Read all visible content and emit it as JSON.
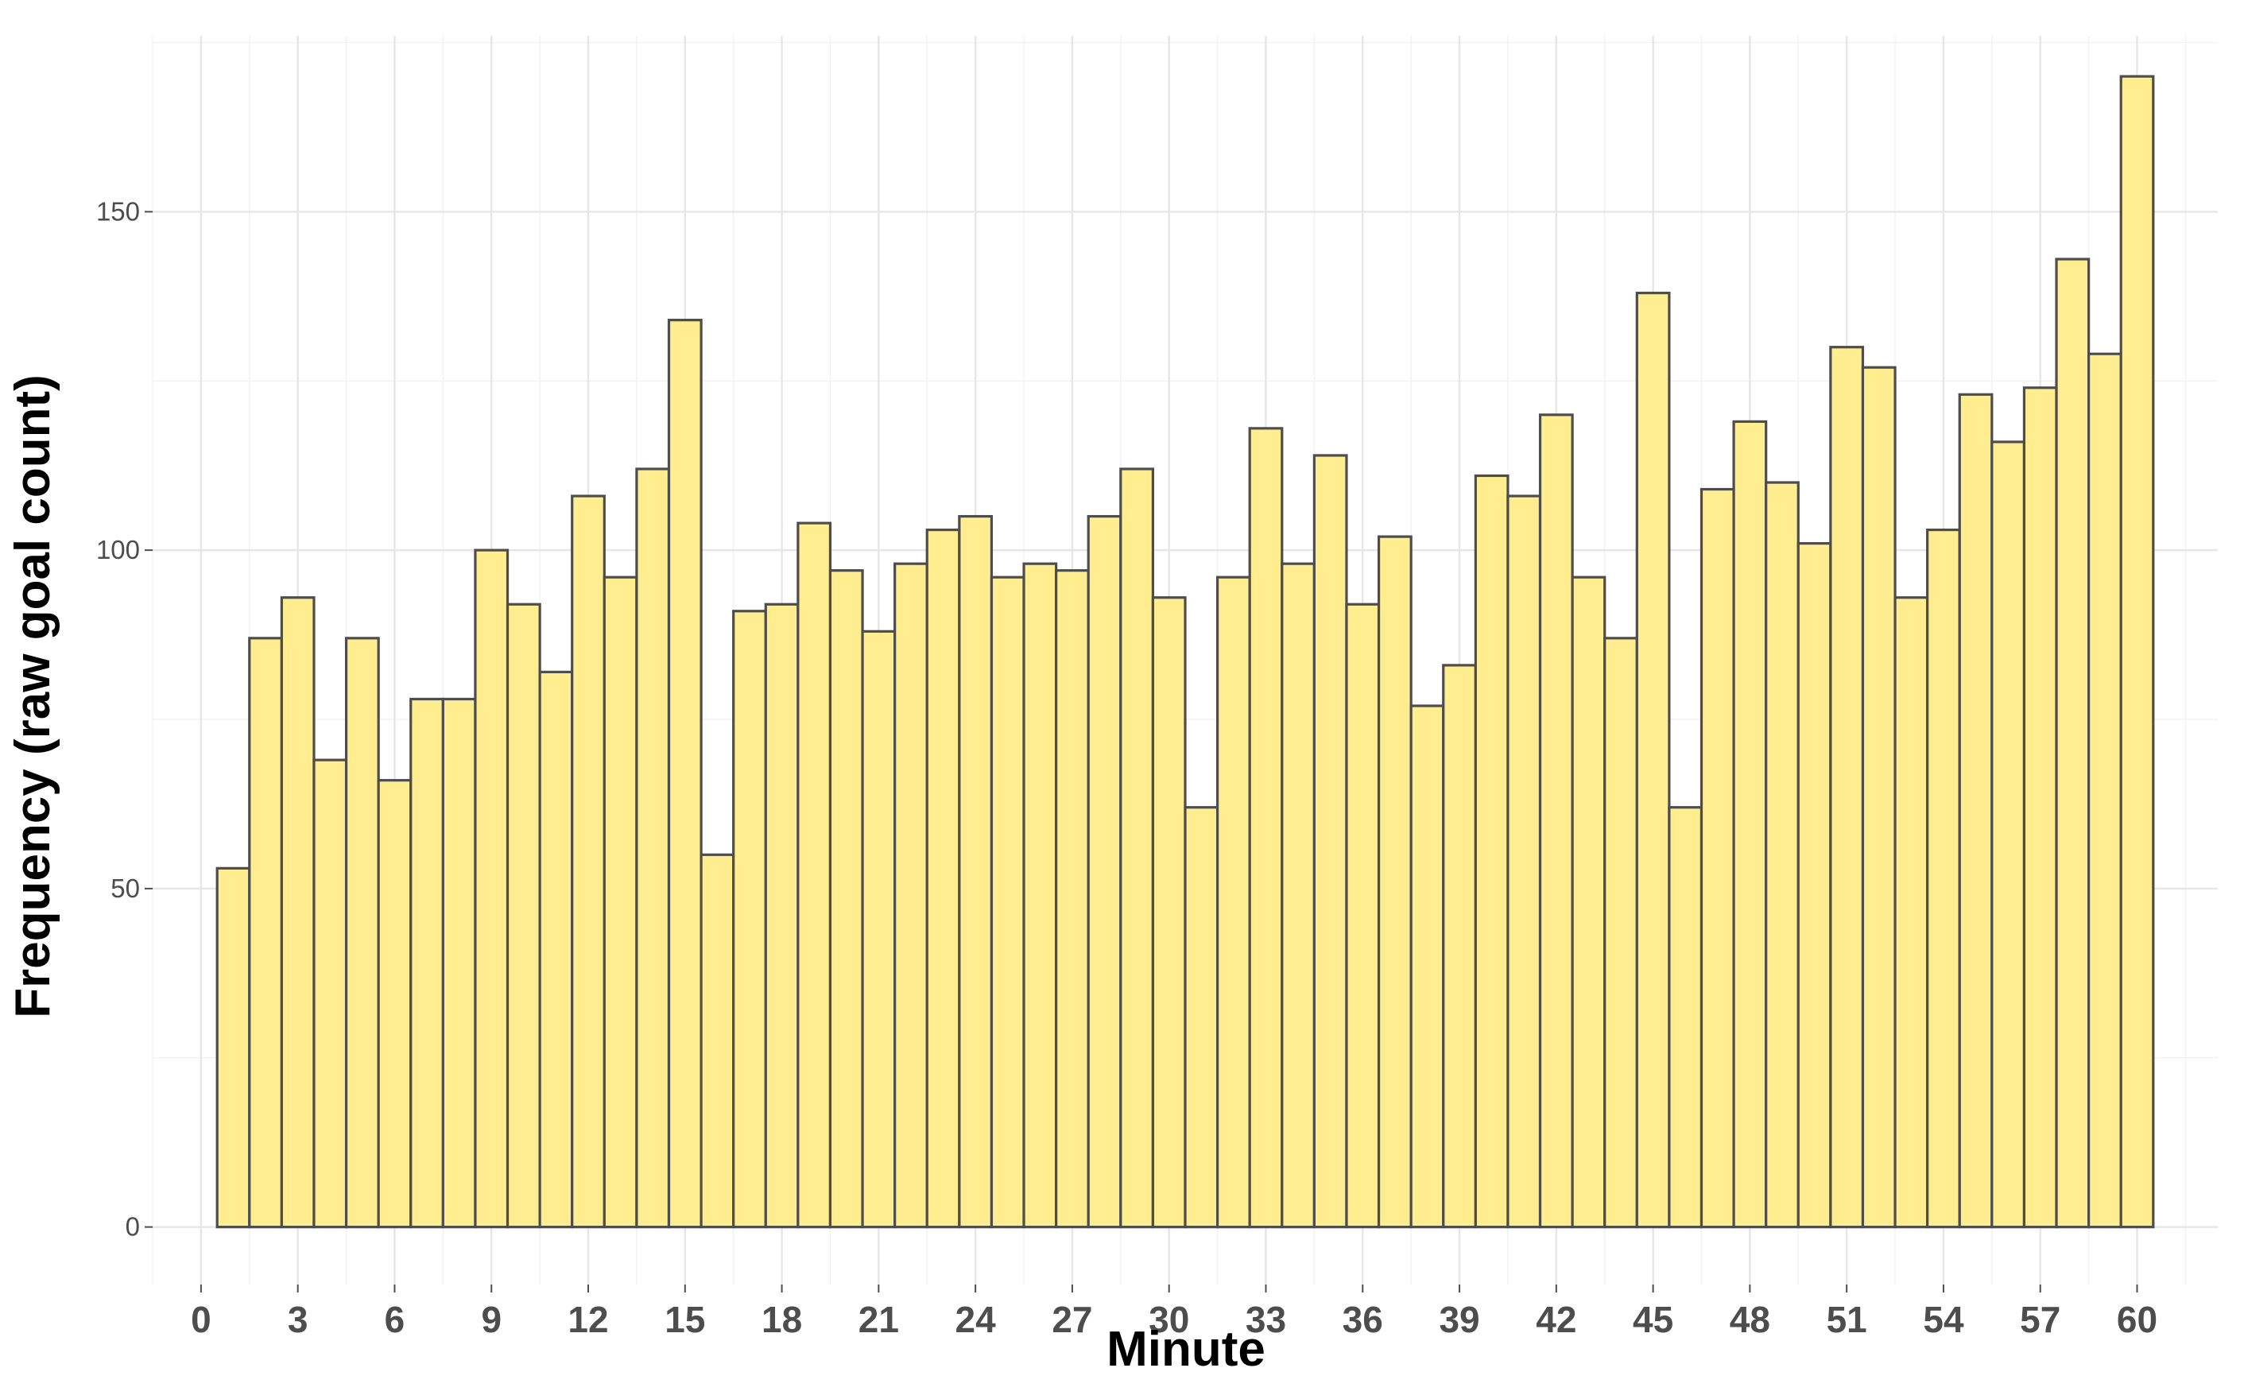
{
  "chart_data": {
    "type": "bar",
    "xlabel": "Minute",
    "ylabel": "Frequency (raw goal count)",
    "x": [
      1,
      2,
      3,
      4,
      5,
      6,
      7,
      8,
      9,
      10,
      11,
      12,
      13,
      14,
      15,
      16,
      17,
      18,
      19,
      20,
      21,
      22,
      23,
      24,
      25,
      26,
      27,
      28,
      29,
      30,
      31,
      32,
      33,
      34,
      35,
      36,
      37,
      38,
      39,
      40,
      41,
      42,
      43,
      44,
      45,
      46,
      47,
      48,
      49,
      50,
      51,
      52,
      53,
      54,
      55,
      56,
      57,
      58,
      59,
      60
    ],
    "values": [
      53,
      87,
      93,
      69,
      87,
      66,
      78,
      78,
      100,
      92,
      82,
      108,
      96,
      112,
      134,
      55,
      91,
      92,
      104,
      97,
      88,
      98,
      103,
      105,
      96,
      98,
      97,
      105,
      112,
      93,
      62,
      96,
      118,
      98,
      114,
      92,
      102,
      77,
      83,
      111,
      108,
      120,
      96,
      87,
      138,
      62,
      109,
      119,
      110,
      101,
      130,
      127,
      93,
      103,
      123,
      116,
      124,
      143,
      129,
      170
    ],
    "xlim": [
      -1.5,
      62.5
    ],
    "ylim": [
      -8.5,
      176
    ],
    "xticks": [
      "0",
      "3",
      "6",
      "9",
      "12",
      "15",
      "18",
      "21",
      "24",
      "27",
      "30",
      "33",
      "36",
      "39",
      "42",
      "45",
      "48",
      "51",
      "54",
      "57",
      "60"
    ],
    "yticks": [
      "0",
      "50",
      "100",
      "150"
    ],
    "grid": true,
    "bar_fill": "#FFED8F",
    "bar_outline": "#4d4d4d"
  }
}
